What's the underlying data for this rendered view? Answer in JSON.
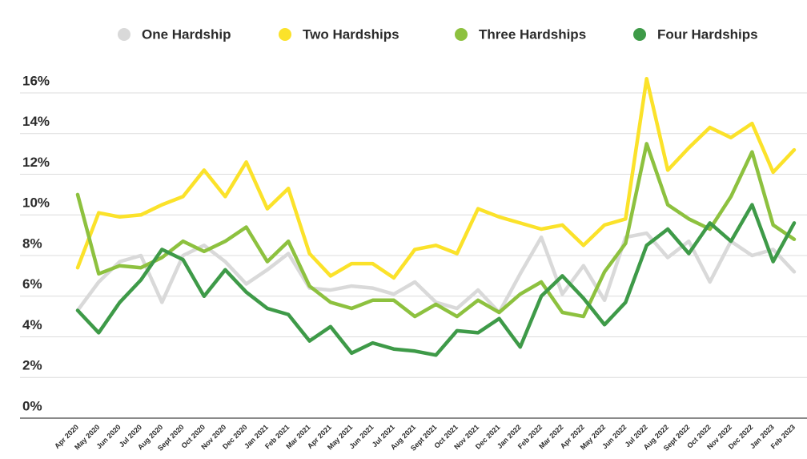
{
  "chart_data": {
    "type": "line",
    "categories": [
      "Apr 2020",
      "May 2020",
      "Jun 2020",
      "Jul 2020",
      "Aug 2020",
      "Sept 2020",
      "Oct 2020",
      "Nov 2020",
      "Dec 2020",
      "Jan 2021",
      "Feb 2021",
      "Mar 2021",
      "Apr 2021",
      "May 2021",
      "Jun 2021",
      "Jul 2021",
      "Aug 2021",
      "Sept 2021",
      "Oct 2021",
      "Nov 2021",
      "Dec 2021",
      "Jan 2022",
      "Feb 2022",
      "Mar 2022",
      "Apr 2022",
      "May 2022",
      "Jun 2022",
      "Jul 2022",
      "Aug 2022",
      "Sept 2022",
      "Oct 2022",
      "Nov 2022",
      "Dec 2022",
      "Jan 2023",
      "Feb 2023"
    ],
    "series": [
      {
        "name": "One Hardship",
        "color": "#d9d9d9",
        "values": [
          5.3,
          6.7,
          7.7,
          8.0,
          5.7,
          8.0,
          8.5,
          7.7,
          6.6,
          7.3,
          8.1,
          6.4,
          6.3,
          6.5,
          6.4,
          6.1,
          6.7,
          5.7,
          5.4,
          6.3,
          5.2,
          7.1,
          8.9,
          6.1,
          7.5,
          5.8,
          8.9,
          9.1,
          7.9,
          8.7,
          6.7,
          8.7,
          8.0,
          8.3,
          7.2
        ]
      },
      {
        "name": "Two Hardships",
        "color": "#fbe22a",
        "values": [
          7.4,
          10.1,
          9.9,
          10.0,
          10.5,
          10.9,
          12.2,
          10.9,
          12.6,
          10.3,
          11.3,
          8.1,
          7.0,
          7.6,
          7.6,
          6.9,
          8.3,
          8.5,
          8.1,
          10.3,
          9.9,
          9.6,
          9.3,
          9.5,
          8.5,
          9.5,
          9.8,
          16.7,
          12.2,
          13.3,
          14.3,
          13.8,
          14.5,
          12.1,
          13.2
        ]
      },
      {
        "name": "Three Hardships",
        "color": "#8dc13f",
        "values": [
          11.0,
          7.1,
          7.5,
          7.4,
          7.9,
          8.7,
          8.2,
          8.7,
          9.4,
          7.7,
          8.7,
          6.5,
          5.7,
          5.4,
          5.8,
          5.8,
          5.0,
          5.6,
          5.0,
          5.8,
          5.2,
          6.1,
          6.7,
          5.2,
          5.0,
          7.2,
          8.6,
          13.5,
          10.5,
          9.8,
          9.3,
          10.9,
          13.1,
          9.5,
          8.8
        ]
      },
      {
        "name": "Four Hardships",
        "color": "#3e9a48",
        "values": [
          5.3,
          4.2,
          5.7,
          6.8,
          8.3,
          7.8,
          6.0,
          7.3,
          6.2,
          5.4,
          5.1,
          3.8,
          4.5,
          3.2,
          3.7,
          3.4,
          3.3,
          3.1,
          4.3,
          4.2,
          4.9,
          3.5,
          6.0,
          7.0,
          5.9,
          4.6,
          5.7,
          8.5,
          9.3,
          8.1,
          9.6,
          8.7,
          10.5,
          7.7,
          9.6
        ]
      }
    ],
    "ylim": [
      0,
      16
    ],
    "yticks": [
      {
        "value": 0,
        "label": "0%"
      },
      {
        "value": 2,
        "label": "2%"
      },
      {
        "value": 4,
        "label": "4%"
      },
      {
        "value": 6,
        "label": "6%"
      },
      {
        "value": 8,
        "label": "8%"
      },
      {
        "value": 10,
        "label": "10%"
      },
      {
        "value": 12,
        "label": "12%"
      },
      {
        "value": 14,
        "label": "14%"
      },
      {
        "value": 16,
        "label": "16%"
      }
    ],
    "grid": true
  }
}
